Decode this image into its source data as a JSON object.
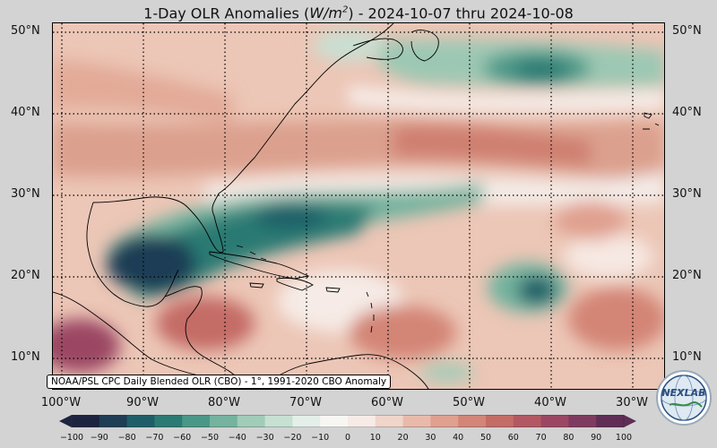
{
  "title": {
    "prefix": "1-Day OLR Anomalies (",
    "unit_base": "W/m",
    "unit_exp": "2",
    "suffix": ") - 2024-10-07 thru 2024-10-08"
  },
  "source_note": "NOAA/PSL CPC Daily Blended OLR (CBO) - 1°, 1991-2020 CBO Anomaly",
  "lat_labels": [
    "50°N",
    "40°N",
    "30°N",
    "20°N",
    "10°N"
  ],
  "lon_labels": [
    "100°W",
    "90°W",
    "80°W",
    "70°W",
    "60°W",
    "50°W",
    "40°W",
    "30°W"
  ],
  "colorbar": {
    "ticks": [
      "−100",
      "−90",
      "−80",
      "−70",
      "−60",
      "−50",
      "−40",
      "−30",
      "−20",
      "−10",
      "0",
      "10",
      "20",
      "30",
      "40",
      "50",
      "60",
      "70",
      "80",
      "90",
      "100"
    ],
    "colors": [
      "#1c2440",
      "#1f3d55",
      "#1f5e68",
      "#2b7a73",
      "#4a9788",
      "#74b39f",
      "#a0ccb8",
      "#c6e0d2",
      "#e3efe8",
      "#f7f6f3",
      "#f6ebe6",
      "#f0d5ca",
      "#e9baab",
      "#e0a08f",
      "#d38576",
      "#c46c66",
      "#b35862",
      "#9b4763",
      "#7f3a5f",
      "#5f2d55"
    ]
  },
  "map": {
    "region": "Western North Atlantic and Caribbean",
    "lat_range": [
      6,
      51
    ],
    "lon_range": [
      -101,
      -27
    ]
  },
  "logo": {
    "text": "NEXLAB",
    "icon": "nexlab-globe-logo"
  }
}
